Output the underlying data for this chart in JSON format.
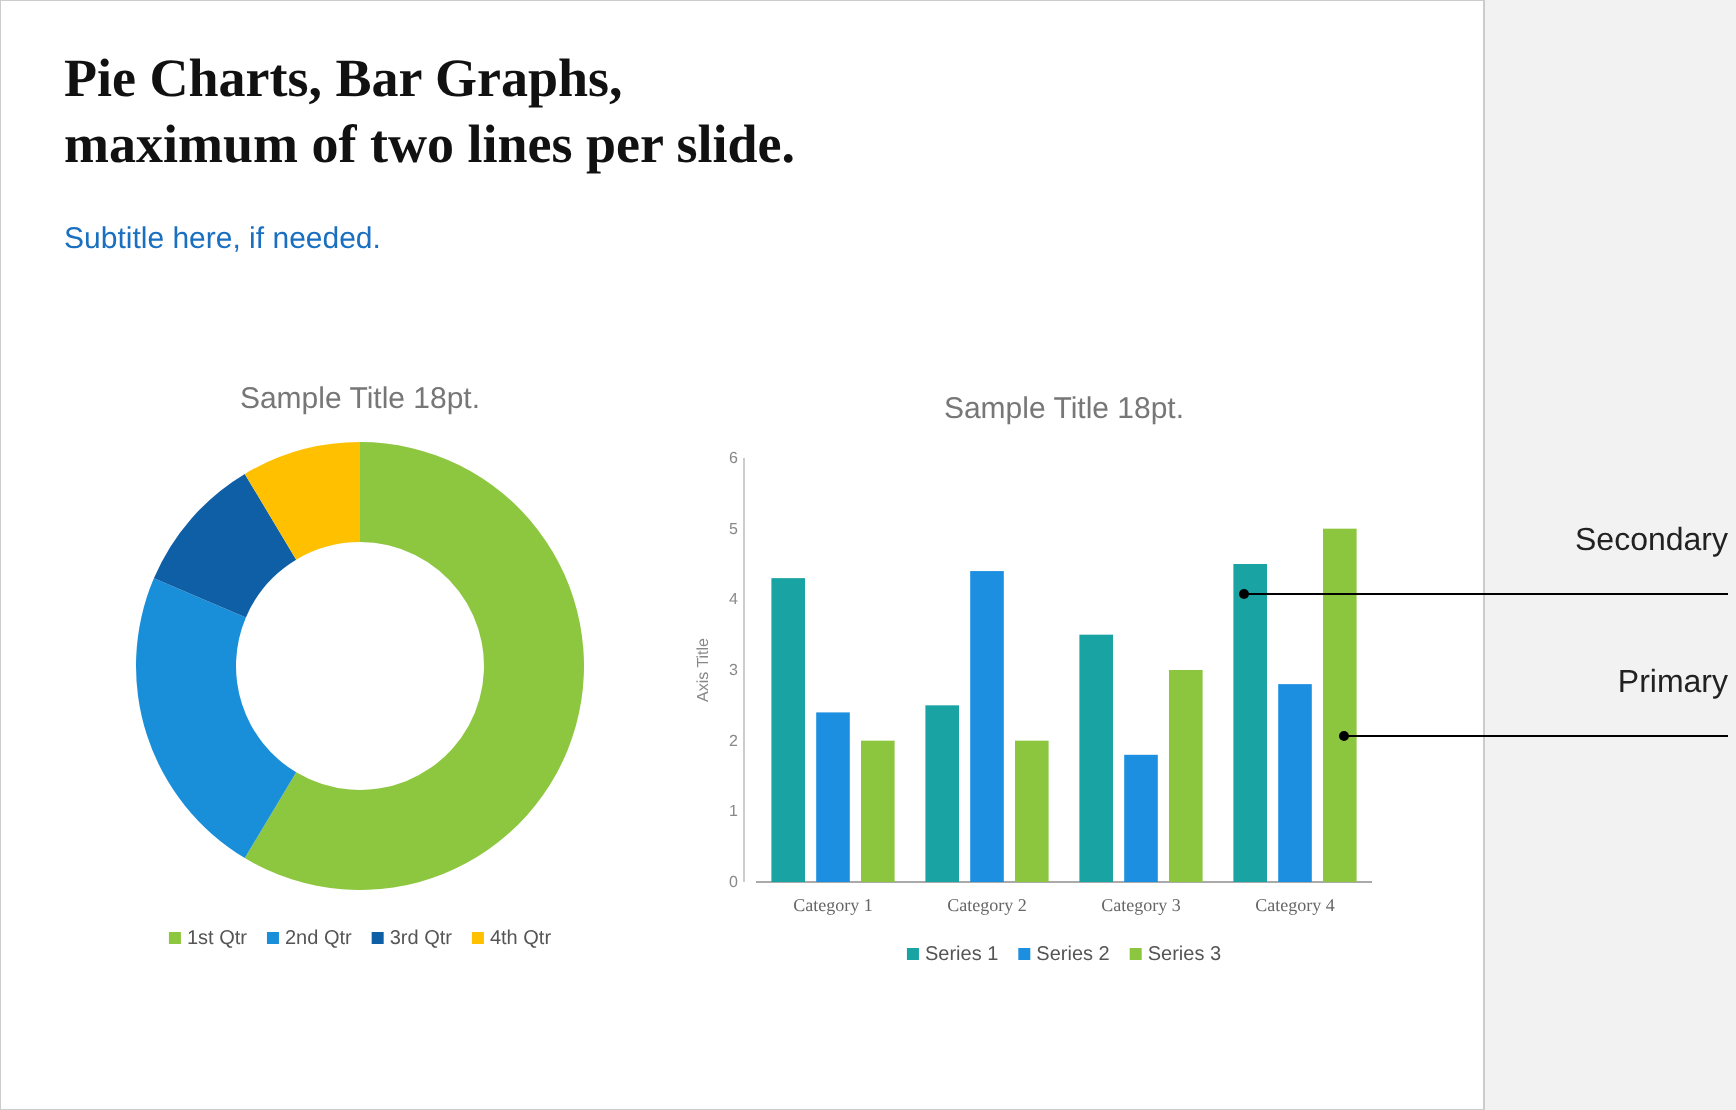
{
  "chart_data": [
    {
      "type": "other",
      "title": "Pie Charts, Bar Graphs,\nmaximum of two lines per slide.",
      "subtitle": "Subtitle here, if needed."
    },
    {
      "type": "donut",
      "title": "Sample Title 18pt.",
      "categories": [
        "1st Qtr",
        "2nd Qtr",
        "3rd Qtr",
        "4th Qtr"
      ],
      "values": [
        58.6,
        22.8,
        10.0,
        8.6
      ],
      "colors": [
        "#8dc63f",
        "#1a8fd9",
        "#0f5fa6",
        "#ffc000"
      ],
      "legend": "bottom"
    },
    {
      "type": "bar",
      "title": "Sample Title 18pt.",
      "ylabel": "Axis Title",
      "categories": [
        "Category 1",
        "Category 2",
        "Category 3",
        "Category 4"
      ],
      "series": [
        {
          "name": "Series 1",
          "color": "#1aa3a3",
          "values": [
            4.3,
            2.5,
            3.5,
            4.5
          ]
        },
        {
          "name": "Series 2",
          "color": "#1c8fe0",
          "values": [
            2.4,
            4.4,
            1.8,
            2.8
          ]
        },
        {
          "name": "Series 3",
          "color": "#8cc63f",
          "values": [
            2,
            2,
            3,
            5
          ]
        }
      ],
      "ylim": [
        0,
        6
      ],
      "yticks": [
        0,
        1,
        2,
        3,
        4,
        5,
        6
      ],
      "legend": "bottom",
      "annotations": [
        "Secondary",
        "Primary"
      ]
    }
  ]
}
